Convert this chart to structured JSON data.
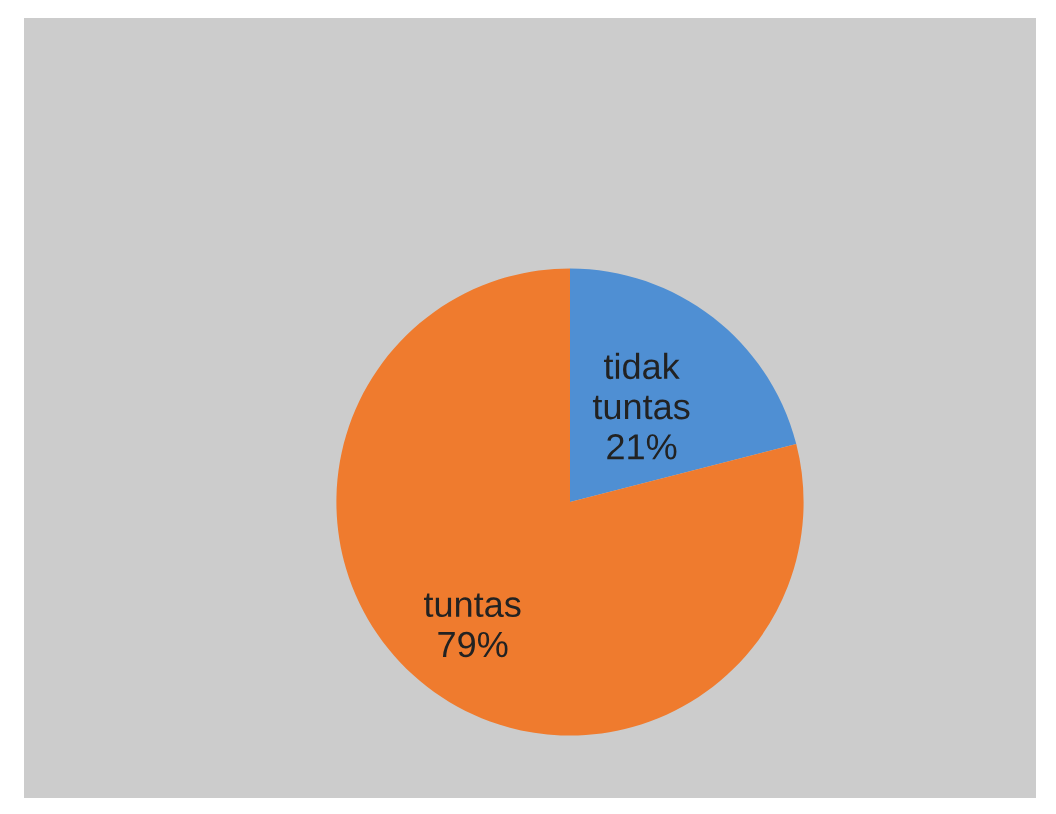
{
  "chart_data": {
    "type": "pie",
    "categories": [
      "tidak tuntas",
      "tuntas"
    ],
    "values": [
      21,
      79
    ],
    "colors": [
      "#4f8fd3",
      "#ef7b2e"
    ],
    "value_labels": [
      "21%",
      "79%"
    ],
    "legend": false
  }
}
